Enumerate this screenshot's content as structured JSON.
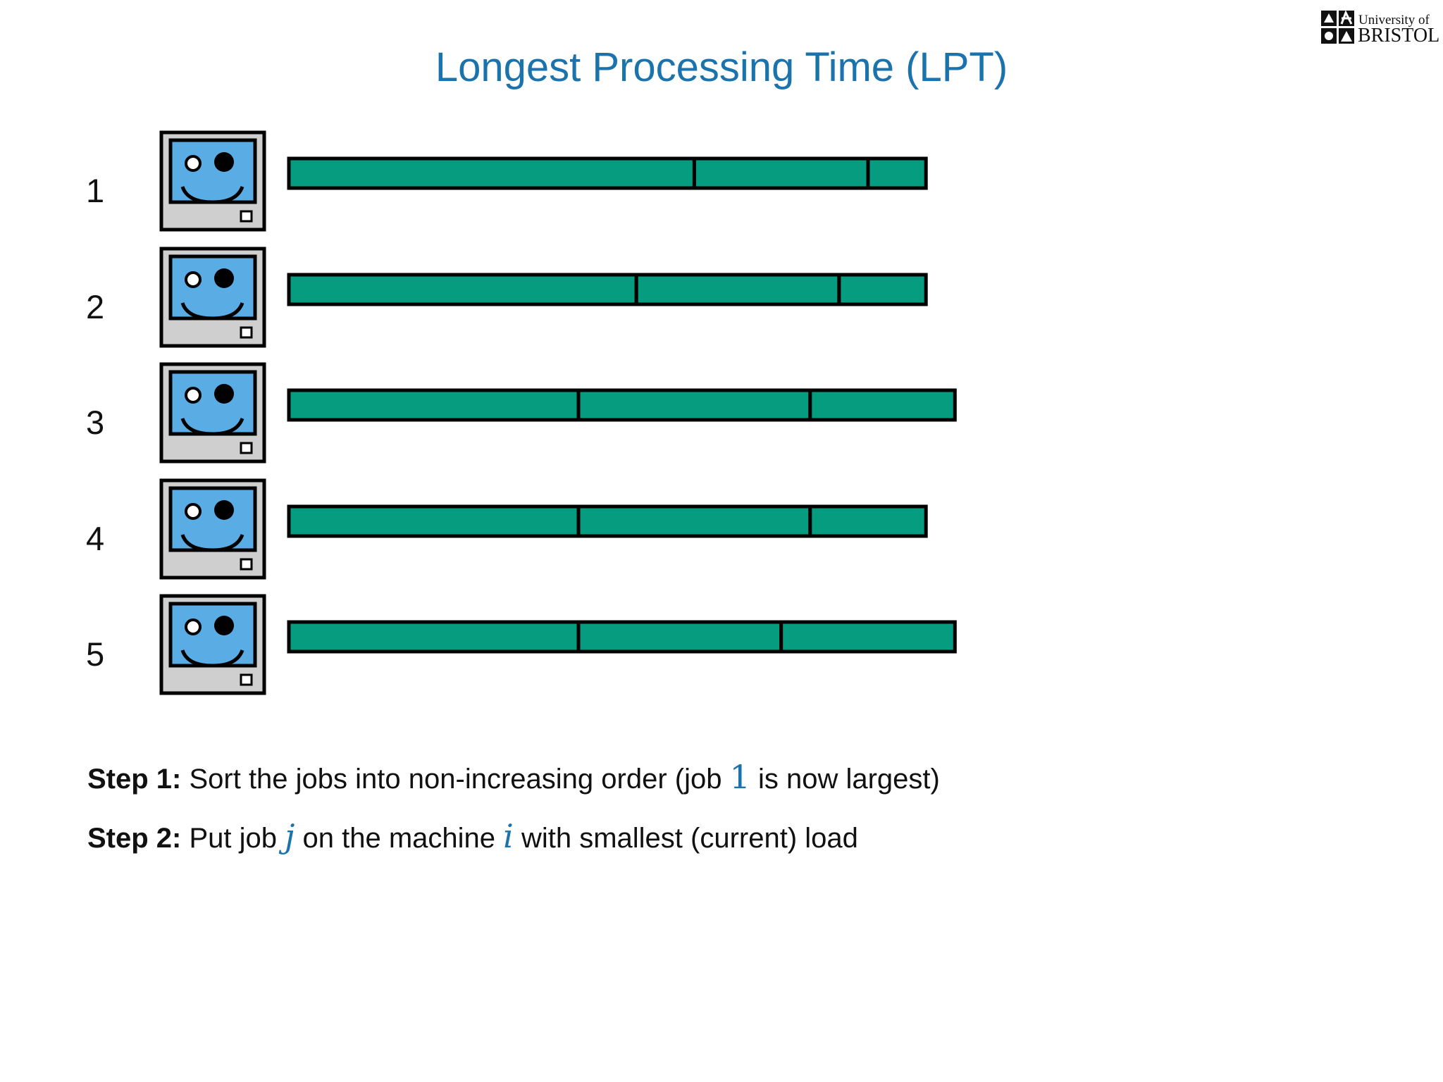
{
  "title": "Longest Processing Time (LPT)",
  "logo": {
    "line1": "University of",
    "line2": "BRISTOL"
  },
  "colors": {
    "title": "#1a73ad",
    "job_fill": "#069c80",
    "screen": "#5aace4",
    "monitor_body": "#cfcfcf",
    "math": "#1a73ad"
  },
  "machines": [
    {
      "label": "1",
      "jobs": [
        7,
        3,
        1
      ]
    },
    {
      "label": "2",
      "jobs": [
        6,
        3.5,
        1.5
      ]
    },
    {
      "label": "3",
      "jobs": [
        5,
        4,
        2.5
      ]
    },
    {
      "label": "4",
      "jobs": [
        5,
        4,
        2
      ]
    },
    {
      "label": "5",
      "jobs": [
        5,
        3.5,
        3
      ]
    }
  ],
  "steps": [
    {
      "bold": "Step 1:",
      "before": " Sort the jobs into non-increasing order (job ",
      "math1": "1",
      "after": " is now largest)"
    },
    {
      "bold": "Step 2:",
      "before": " Put job ",
      "math1": "j",
      "middle": " on the machine ",
      "math2": "i",
      "after": " with smallest (current) load"
    }
  ]
}
